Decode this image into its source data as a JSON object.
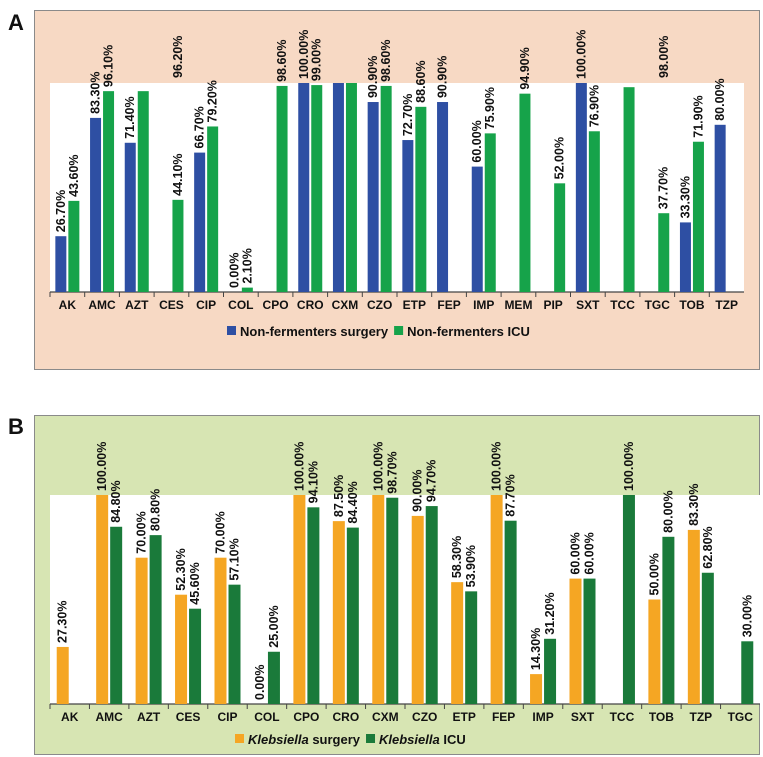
{
  "panels": [
    {
      "label": "A"
    },
    {
      "label": "B"
    }
  ],
  "chart_data": [
    {
      "type": "bar",
      "panel": "A",
      "categories": [
        "AK",
        "AMC",
        "AZT",
        "CES",
        "CIP",
        "COL",
        "CPO",
        "CRO",
        "CXM",
        "CZO",
        "ETP",
        "FEP",
        "IMP",
        "MEM",
        "PIP",
        "SXT",
        "TCC",
        "TGC",
        "TOB",
        "TZP"
      ],
      "series": [
        {
          "name": "Non-fermenters surgery",
          "color": "#2e4fa3",
          "values": [
            26.7,
            83.3,
            71.4,
            null,
            66.7,
            null,
            null,
            100.0,
            100.0,
            90.9,
            72.7,
            90.9,
            60.0,
            null,
            null,
            100.0,
            null,
            null,
            33.3,
            80.0
          ],
          "labels": [
            "26.70%",
            "83.30%",
            "71.40%",
            "",
            "66.70%",
            "0.00%",
            "",
            "100.00%",
            "",
            "90.90%",
            "72.70%",
            "90.90%",
            "60.00%",
            "",
            "",
            "100.00%",
            "",
            "",
            "33.30%",
            "80.00%"
          ]
        },
        {
          "name": "Non-fermenters ICU",
          "color": "#16a34a",
          "values": [
            43.6,
            96.1,
            96.1,
            44.1,
            79.2,
            2.1,
            98.6,
            99.0,
            100.0,
            98.6,
            88.6,
            null,
            75.9,
            94.9,
            52.0,
            76.9,
            98.0,
            37.7,
            71.9,
            null
          ],
          "labels": [
            "43.60%",
            "96.10%",
            "",
            "44.10%",
            "79.20%",
            "2.10%",
            "98.60%",
            "99.00%",
            "",
            "98.60%",
            "88.60%",
            "",
            "75.90%",
            "94.90%",
            "52.00%",
            "76.90%",
            "",
            "37.70%",
            "71.90%",
            ""
          ]
        }
      ],
      "extra_labels": [
        "96.20%",
        "98.00%"
      ],
      "ylim": [
        0,
        100
      ]
    },
    {
      "type": "bar",
      "panel": "B",
      "categories": [
        "AK",
        "AMC",
        "AZT",
        "CES",
        "CIP",
        "COL",
        "CPO",
        "CRO",
        "CXM",
        "CZO",
        "ETP",
        "FEP",
        "IMP",
        "SXT",
        "TCC",
        "TOB",
        "TZP",
        "TGC"
      ],
      "series": [
        {
          "name": "Klebsiella surgery",
          "color": "#f5a623",
          "values": [
            27.3,
            100.0,
            70.0,
            52.3,
            70.0,
            null,
            100.0,
            87.5,
            100.0,
            90.0,
            58.3,
            100.0,
            14.3,
            60.0,
            null,
            50.0,
            83.3,
            null
          ],
          "labels": [
            "27.30%",
            "100.00%",
            "70.00%",
            "52.30%",
            "70.00%",
            "0.00%",
            "100.00%",
            "87.50%",
            "100.00%",
            "90.00%",
            "58.30%",
            "100.00%",
            "14.30%",
            "60.00%",
            "",
            "50.00%",
            "83.30%",
            ""
          ]
        },
        {
          "name": "Klebsiella ICU",
          "color": "#1a7a3a",
          "values": [
            null,
            84.8,
            80.8,
            45.6,
            57.1,
            25.0,
            94.1,
            84.4,
            98.7,
            94.7,
            53.9,
            87.7,
            31.2,
            60.0,
            100.0,
            80.0,
            62.8,
            30.0
          ],
          "labels": [
            "",
            "84.80%",
            "80.80%",
            "45.60%",
            "57.10%",
            "25.00%",
            "94.10%",
            "84.40%",
            "98.70%",
            "94.70%",
            "53.90%",
            "87.70%",
            "31.20%",
            "60.00%",
            "100.00%",
            "80.00%",
            "62.80%",
            "30.00%"
          ]
        }
      ],
      "ylim": [
        0,
        100
      ]
    }
  ]
}
